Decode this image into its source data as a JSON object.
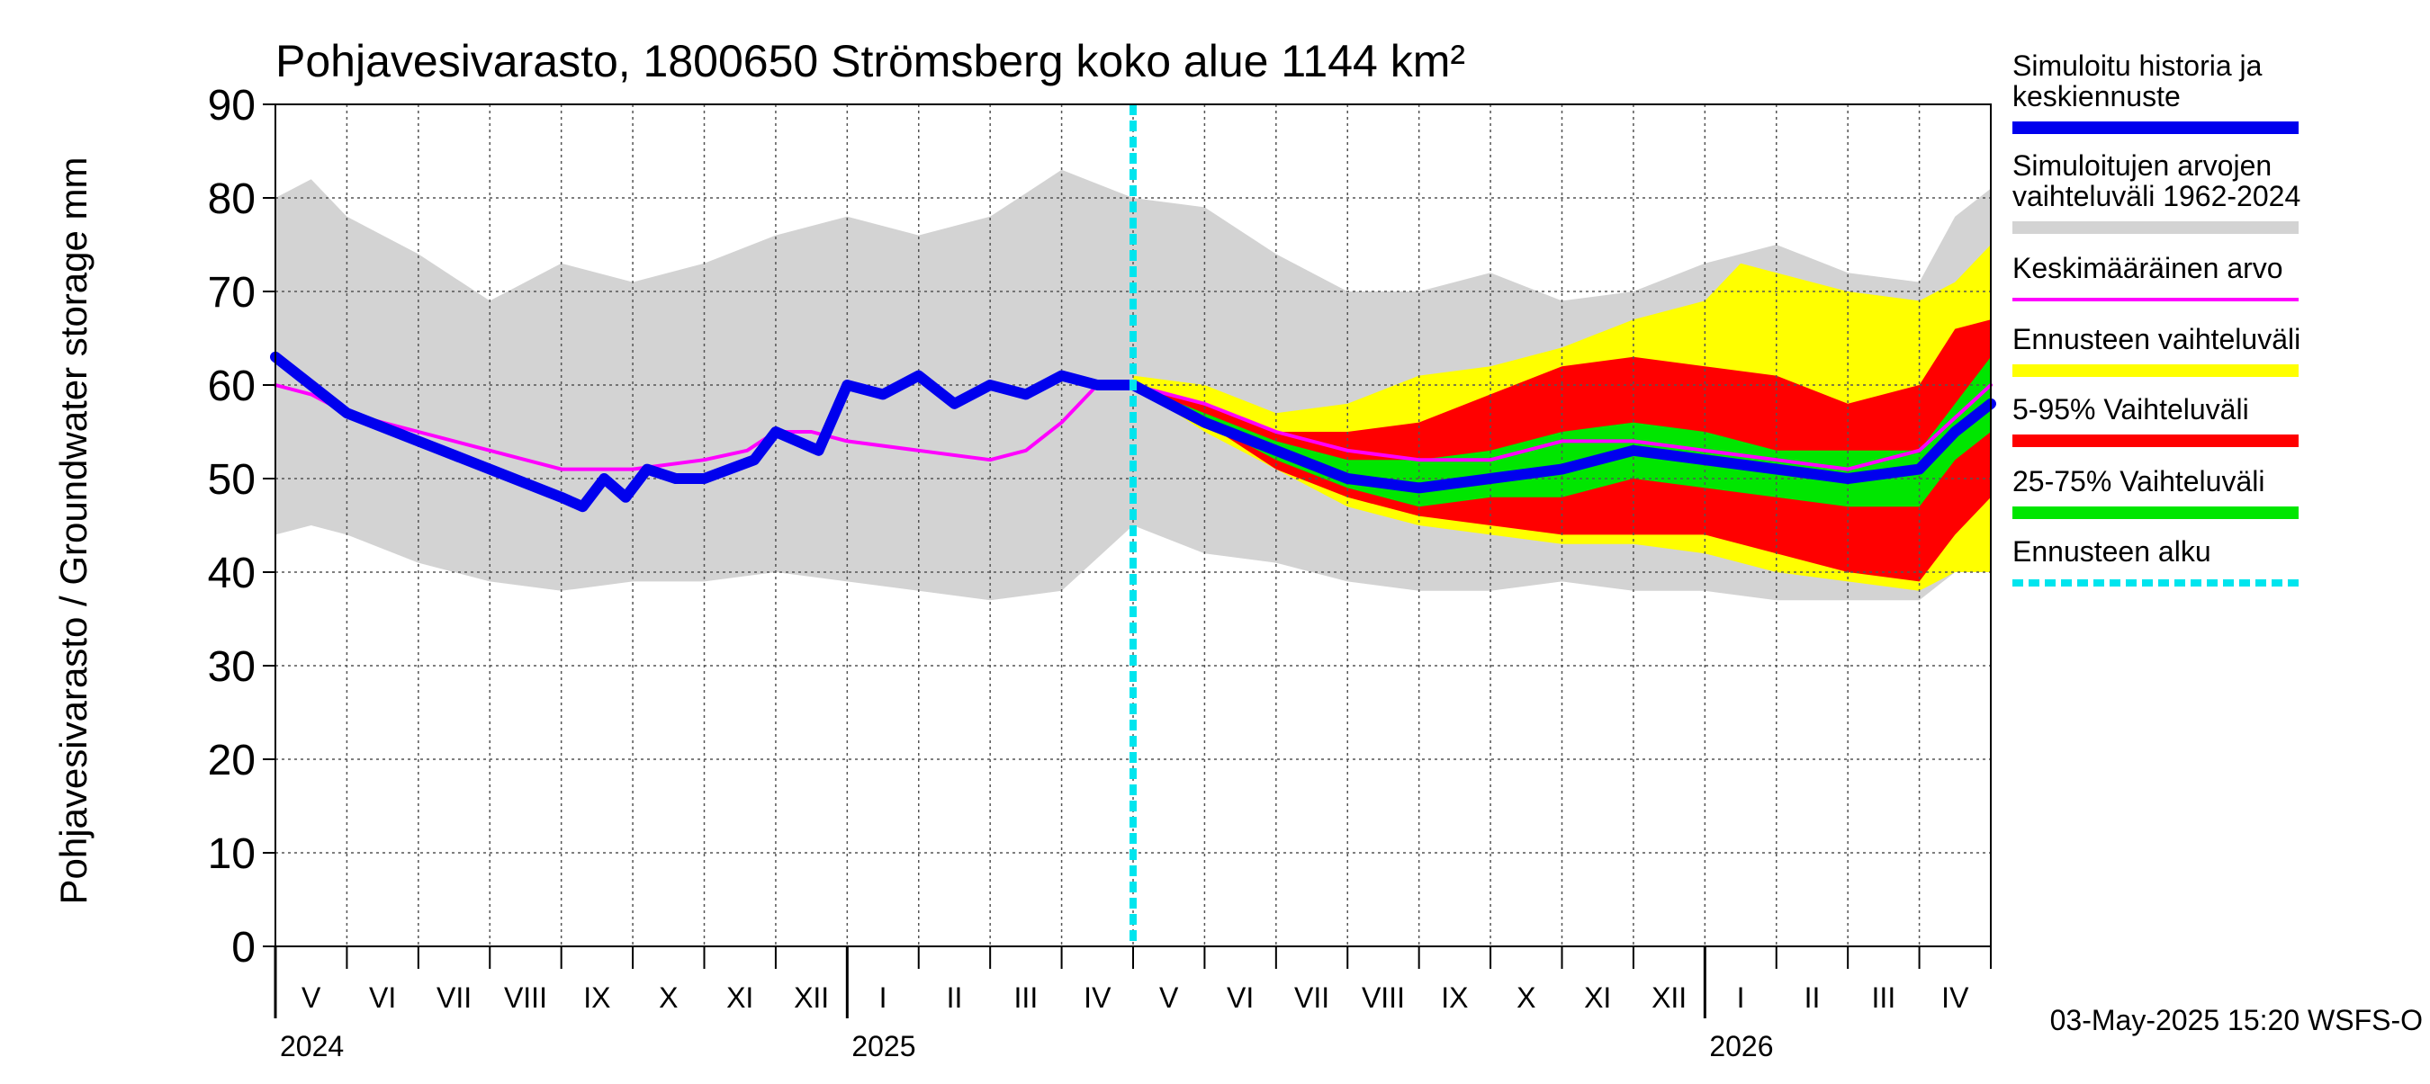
{
  "chart_data": {
    "type": "area",
    "title": "Pohjavesivarasto, 1800650 Strömsberg koko alue 1144 km²",
    "ylabel": "Pohjavesivarasto / Groundwater storage   mm",
    "ylim": [
      0,
      90
    ],
    "yticks": [
      0,
      10,
      20,
      30,
      40,
      50,
      60,
      70,
      80,
      90
    ],
    "grid": true,
    "xlim": [
      0,
      24
    ],
    "x_unit": "months since 2024-05-01",
    "months": [
      {
        "label": "V",
        "x": 0
      },
      {
        "label": "VI",
        "x": 1
      },
      {
        "label": "VII",
        "x": 2
      },
      {
        "label": "VIII",
        "x": 3
      },
      {
        "label": "IX",
        "x": 4
      },
      {
        "label": "X",
        "x": 5
      },
      {
        "label": "XI",
        "x": 6
      },
      {
        "label": "XII",
        "x": 7
      },
      {
        "label": "I",
        "x": 8
      },
      {
        "label": "II",
        "x": 9
      },
      {
        "label": "III",
        "x": 10
      },
      {
        "label": "IV",
        "x": 11
      },
      {
        "label": "V",
        "x": 12
      },
      {
        "label": "VI",
        "x": 13
      },
      {
        "label": "VII",
        "x": 14
      },
      {
        "label": "VIII",
        "x": 15
      },
      {
        "label": "IX",
        "x": 16
      },
      {
        "label": "X",
        "x": 17
      },
      {
        "label": "XI",
        "x": 18
      },
      {
        "label": "XII",
        "x": 19
      },
      {
        "label": "I",
        "x": 20
      },
      {
        "label": "II",
        "x": 21
      },
      {
        "label": "III",
        "x": 22
      },
      {
        "label": "IV",
        "x": 23
      }
    ],
    "years": [
      {
        "label": "2024",
        "x": 0
      },
      {
        "label": "2025",
        "x": 8
      },
      {
        "label": "2026",
        "x": 20
      }
    ],
    "forecast_start_x": 12,
    "series": [
      {
        "name": "Simuloitujen arvojen vaihteluväli 1962-2024",
        "kind": "band",
        "color": "#d3d3d3",
        "x": [
          0,
          0.5,
          1,
          2,
          3,
          4,
          5,
          6,
          7,
          8,
          9,
          10,
          11,
          12,
          13,
          14,
          15,
          16,
          17,
          18,
          19,
          20,
          21,
          22,
          23,
          23.5,
          24
        ],
        "upper": [
          80,
          82,
          78,
          74,
          69,
          73,
          71,
          73,
          76,
          78,
          76,
          78,
          83,
          80,
          79,
          74,
          70,
          70,
          72,
          69,
          70,
          73,
          75,
          72,
          71,
          78,
          81
        ],
        "lower": [
          44,
          45,
          44,
          41,
          39,
          38,
          39,
          39,
          40,
          39,
          38,
          37,
          38,
          45,
          42,
          41,
          39,
          38,
          38,
          39,
          38,
          38,
          37,
          37,
          37,
          40,
          44
        ]
      },
      {
        "name": "Ennusteen vaihteluväli",
        "kind": "band",
        "color": "#ffff00",
        "x": [
          12,
          13,
          14,
          15,
          16,
          17,
          18,
          19,
          20,
          20.5,
          21,
          22,
          23,
          23.5,
          24
        ],
        "upper": [
          61,
          60,
          57,
          58,
          61,
          62,
          64,
          67,
          69,
          73,
          72,
          70,
          69,
          71,
          75
        ],
        "lower": [
          60,
          55,
          51,
          47,
          45,
          44,
          43,
          43,
          42,
          41,
          40,
          39,
          38,
          40,
          40
        ]
      },
      {
        "name": "5-95% Vaihteluväli",
        "kind": "band",
        "color": "#ff0000",
        "x": [
          12,
          13,
          14,
          15,
          16,
          17,
          18,
          19,
          20,
          21,
          22,
          23,
          23.5,
          24
        ],
        "upper": [
          60,
          58,
          55,
          55,
          56,
          59,
          62,
          63,
          62,
          61,
          58,
          60,
          66,
          67
        ],
        "lower": [
          60,
          56,
          51,
          48,
          46,
          45,
          44,
          44,
          44,
          42,
          40,
          39,
          44,
          48
        ]
      },
      {
        "name": "25-75% Vaihteluväli",
        "kind": "band",
        "color": "#00e600",
        "x": [
          12,
          13,
          14,
          15,
          16,
          17,
          18,
          19,
          20,
          21,
          22,
          23,
          23.5,
          24
        ],
        "upper": [
          60,
          57,
          54,
          52,
          52,
          53,
          55,
          56,
          55,
          53,
          53,
          53,
          58,
          63
        ],
        "lower": [
          60,
          56,
          52,
          49,
          47,
          48,
          48,
          50,
          49,
          48,
          47,
          47,
          52,
          55
        ]
      },
      {
        "name": "Keskimääräinen arvo",
        "kind": "line",
        "color": "#ff00ff",
        "width": 2,
        "x": [
          0,
          0.5,
          1,
          2,
          3,
          4,
          5,
          6,
          6.6,
          7,
          7.5,
          8,
          9,
          10,
          10.5,
          11,
          11.5,
          12,
          13,
          14,
          15,
          16,
          17,
          18,
          19,
          20,
          21,
          22,
          23,
          24
        ],
        "y": [
          60,
          59,
          57,
          55,
          53,
          51,
          51,
          52,
          53,
          55,
          55,
          54,
          53,
          52,
          53,
          56,
          60,
          60,
          58,
          55,
          53,
          52,
          52,
          54,
          54,
          53,
          52,
          51,
          53,
          60
        ]
      },
      {
        "name": "Simuloitu historia ja keskiennuste",
        "kind": "line",
        "color": "#0000ee",
        "width": 6,
        "x": [
          0,
          0.5,
          1,
          2,
          3,
          4,
          4.3,
          4.6,
          4.9,
          5.2,
          5.6,
          6,
          6.7,
          7,
          7.3,
          7.6,
          8,
          8.5,
          9,
          9.5,
          10,
          10.5,
          11,
          11.5,
          12,
          13,
          14,
          15,
          16,
          17,
          18,
          19,
          20,
          21,
          22,
          23,
          23.5,
          24
        ],
        "y": [
          63,
          60,
          57,
          54,
          51,
          48,
          47,
          50,
          48,
          51,
          50,
          50,
          52,
          55,
          54,
          53,
          60,
          59,
          61,
          58,
          60,
          59,
          61,
          60,
          60,
          56,
          53,
          50,
          49,
          50,
          51,
          53,
          52,
          51,
          50,
          51,
          55,
          58
        ]
      }
    ],
    "legend": [
      {
        "label": "Simuloitu historia ja keskiennuste",
        "color": "#0000ee",
        "style": "solid"
      },
      {
        "label": "Simuloitujen arvojen vaihteluväli 1962-2024",
        "color": "#d3d3d3",
        "style": "solid"
      },
      {
        "label": "Keskimääräinen arvo",
        "color": "#ff00ff",
        "style": "thin"
      },
      {
        "label": "Ennusteen vaihteluväli",
        "color": "#ffff00",
        "style": "solid"
      },
      {
        "label": "5-95% Vaihteluväli",
        "color": "#ff0000",
        "style": "solid"
      },
      {
        "label": "25-75% Vaihteluväli",
        "color": "#00e600",
        "style": "solid"
      },
      {
        "label": "Ennusteen alku",
        "color": "#00e5ee",
        "style": "dashed"
      }
    ],
    "footer": "03-May-2025 15:20 WSFS-O"
  }
}
